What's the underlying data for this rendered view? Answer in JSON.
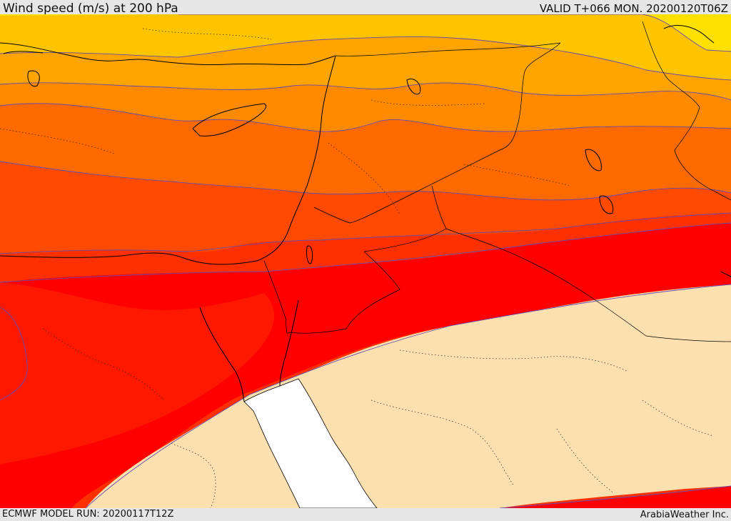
{
  "header": {
    "title": "Wind speed (m/s) at 200 hPa",
    "valid": "VALID T+066 MON. 20200120T06Z"
  },
  "footer": {
    "model_run": "ECMWF MODEL RUN: 20200117T12Z",
    "credit": "ArabiaWeather Inc."
  },
  "palette": {
    "yellow": "#ffe000",
    "gold": "#ffc400",
    "amber": "#ffa400",
    "orange": "#ff8a00",
    "dark_orange": "#ff6a00",
    "red_orange": "#ff4a00",
    "orange_red": "#ff3000",
    "red": "#ff0000",
    "calm": "#fde0b0",
    "sea_gap": "#ffffff",
    "contour": "#6b4aa8",
    "coast": "#000000"
  }
}
